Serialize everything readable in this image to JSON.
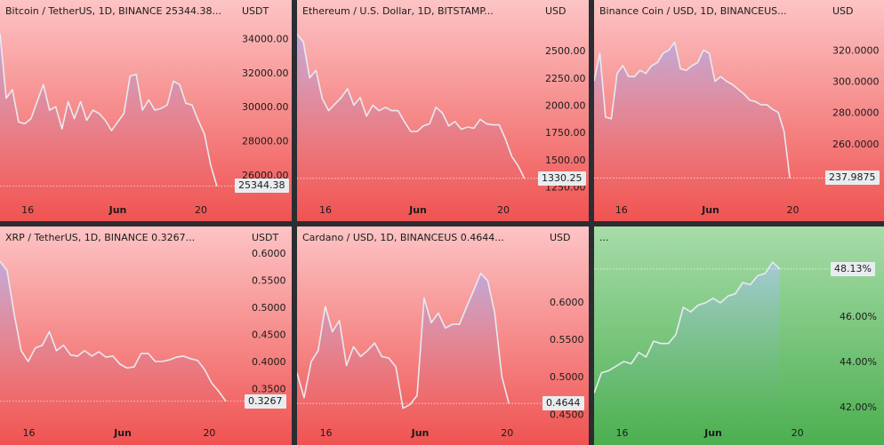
{
  "colors": {
    "red_top": "#fdc4c5",
    "red_bottom": "#ef5351",
    "green_top": "#a7dca9",
    "green_bottom": "#4caf50",
    "line": "#e8eaf0",
    "fill": "#b9a7dd",
    "divider": "#2b2d33"
  },
  "chart_data": [
    {
      "type": "area",
      "title": "Bitcoin / TetherUS, 1D, BINANCE  25344.38...",
      "unit": "USDT",
      "last_value_label": "25344.38",
      "ylim": [
        24900,
        34700
      ],
      "yticks": [
        "26000.00",
        "28000.00",
        "30000.00",
        "32000.00",
        "34000.00"
      ],
      "ytick_values": [
        26000,
        28000,
        30000,
        32000,
        34000
      ],
      "xticks": [
        "16",
        "Jun",
        "20"
      ],
      "xtick_positions": [
        10,
        23,
        35
      ],
      "x_range": [
        6,
        40
      ],
      "values": [
        34300,
        30500,
        31000,
        29100,
        29000,
        29300,
        30300,
        31300,
        29800,
        30000,
        28700,
        30300,
        29300,
        30300,
        29200,
        29800,
        29600,
        29200,
        28600,
        29100,
        29600,
        31800,
        31900,
        29800,
        30400,
        29800,
        29900,
        30100,
        31500,
        31300,
        30200,
        30100,
        29200,
        28400,
        26600,
        25344
      ]
    },
    {
      "type": "area",
      "title": "Ethereum / U.S. Dollar, 1D, BITSTAMP...",
      "unit": "USD",
      "last_value_label": "1330.25",
      "ylim": [
        1190,
        2720
      ],
      "yticks": [
        "1250.00",
        "1500.00",
        "1750.00",
        "2000.00",
        "2250.00",
        "2500.00"
      ],
      "ytick_values": [
        1250,
        1500,
        1750,
        2000,
        2250,
        2500
      ],
      "xticks": [
        "16",
        "Jun",
        "20"
      ],
      "xtick_positions": [
        10,
        23,
        35
      ],
      "x_range": [
        6,
        40
      ],
      "values": [
        2650,
        2580,
        2250,
        2320,
        2060,
        1950,
        2010,
        2070,
        2150,
        2000,
        2070,
        1900,
        2000,
        1950,
        1980,
        1950,
        1950,
        1850,
        1760,
        1760,
        1810,
        1830,
        1980,
        1930,
        1810,
        1850,
        1780,
        1800,
        1790,
        1870,
        1830,
        1820,
        1820,
        1690,
        1530,
        1445,
        1330
      ]
    },
    {
      "type": "area",
      "title": "Binance Coin / USD, 1D, BINANCEUS...",
      "unit": "USD",
      "last_value_label": "237.9875",
      "ylim": [
        228,
        335
      ],
      "yticks": [
        "260.0000",
        "280.0000",
        "300.0000",
        "320.0000"
      ],
      "ytick_values": [
        260,
        280,
        300,
        320
      ],
      "xticks": [
        "16",
        "Jun",
        "20"
      ],
      "xtick_positions": [
        10,
        23,
        35
      ],
      "x_range": [
        6,
        40
      ],
      "values": [
        300,
        318,
        277,
        276,
        305,
        310,
        303,
        303,
        307,
        305,
        310,
        312,
        318,
        320,
        325,
        308,
        307,
        310,
        312,
        320,
        318,
        300,
        303,
        300,
        298,
        295,
        292,
        288,
        287,
        285,
        285,
        282,
        280,
        268,
        238
      ]
    },
    {
      "type": "area",
      "title": "XRP / TetherUS, 1D, BINANCE  0.3267...",
      "unit": "USDT",
      "last_value_label": "0.3267",
      "ylim": [
        0.3,
        0.6
      ],
      "yticks": [
        "0.3500",
        "0.4000",
        "0.4500",
        "0.5000",
        "0.5500",
        "0.6000"
      ],
      "ytick_values": [
        0.35,
        0.4,
        0.45,
        0.5,
        0.55,
        0.6
      ],
      "xticks": [
        "16",
        "Jun",
        "20"
      ],
      "xtick_positions": [
        10,
        23,
        35
      ],
      "x_range": [
        6,
        40
      ],
      "values": [
        0.585,
        0.568,
        0.488,
        0.42,
        0.4,
        0.425,
        0.43,
        0.455,
        0.42,
        0.43,
        0.412,
        0.41,
        0.42,
        0.41,
        0.418,
        0.408,
        0.41,
        0.395,
        0.388,
        0.39,
        0.415,
        0.415,
        0.4,
        0.4,
        0.403,
        0.408,
        0.41,
        0.405,
        0.402,
        0.385,
        0.36,
        0.345,
        0.3267
      ]
    },
    {
      "type": "area",
      "title": "Cardano / USD, 1D, BINANCEUS  0.4644...",
      "unit": "USD",
      "last_value_label": "0.4644",
      "ylim": [
        0.448,
        0.665
      ],
      "yticks": [
        "0.4500",
        "0.5000",
        "0.5500",
        "0.6000"
      ],
      "ytick_values": [
        0.45,
        0.5,
        0.55,
        0.6
      ],
      "xticks": [
        "16",
        "Jun",
        "20"
      ],
      "xtick_positions": [
        10,
        23,
        35
      ],
      "x_range": [
        6,
        40
      ],
      "values": [
        0.505,
        0.472,
        0.52,
        0.535,
        0.594,
        0.56,
        0.575,
        0.515,
        0.54,
        0.527,
        0.535,
        0.545,
        0.527,
        0.525,
        0.513,
        0.458,
        0.463,
        0.475,
        0.605,
        0.572,
        0.585,
        0.565,
        0.57,
        0.57,
        0.593,
        0.615,
        0.638,
        0.628,
        0.585,
        0.5,
        0.4644
      ]
    },
    {
      "type": "area",
      "title": "...",
      "unit": "",
      "last_value_label": "48.13%",
      "ylim": [
        41.6,
        48.8
      ],
      "yticks": [
        "42.00%",
        "44.00%",
        "46.00%"
      ],
      "ytick_values": [
        42,
        44,
        46
      ],
      "xticks": [
        "16",
        "Jun",
        "20"
      ],
      "xtick_positions": [
        10,
        23,
        35
      ],
      "x_range": [
        6,
        40
      ],
      "values": [
        42.6,
        43.5,
        43.6,
        43.8,
        44.0,
        43.9,
        44.4,
        44.2,
        44.9,
        44.8,
        44.8,
        45.2,
        46.4,
        46.2,
        46.5,
        46.6,
        46.8,
        46.6,
        46.9,
        47.0,
        47.5,
        47.4,
        47.8,
        47.9,
        48.4,
        48.1
      ]
    }
  ]
}
